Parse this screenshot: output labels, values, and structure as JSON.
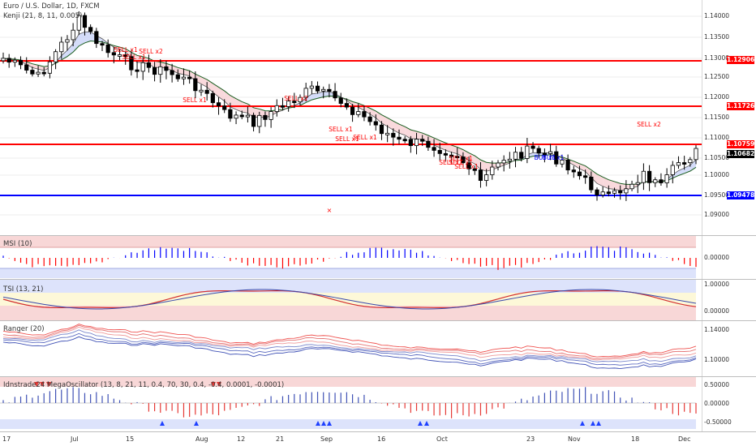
{
  "main": {
    "title": "Euro / U.S. Dollar, 1D, FXCM",
    "indicator": "Kenji (21, 8, 11, 0.005)",
    "ticks": [
      "1.14000",
      "1.13500",
      "1.13000",
      "1.12500",
      "1.12000",
      "1.11500",
      "1.11000",
      "1.10500",
      "1.10000",
      "1.09500",
      "1.09000"
    ],
    "level_tags": [
      {
        "label": "1.12906",
        "color": "#ff0000"
      },
      {
        "label": "1.11726",
        "color": "#ff0000"
      },
      {
        "label": "1.10759",
        "color": "#ff0000"
      },
      {
        "label": "1.10682",
        "color": "#000000"
      },
      {
        "label": "1.09478",
        "color": "#0000ff"
      }
    ],
    "signals": [
      "SELL x1",
      "SELL x1",
      "SELL x2",
      "SELL x1",
      "SELL x2",
      "SELL x1",
      "SELL x1",
      "SELL x1",
      "SELL x1",
      "SELL x1",
      "SELL x1",
      "SELL x1",
      "BUY x1",
      "BUY x1",
      "SELL x2"
    ]
  },
  "panes": [
    {
      "title": "MSI (10)",
      "ticks": [
        "0.00000"
      ]
    },
    {
      "title": "TSI (13, 21)",
      "ticks": [
        "1.00000",
        "0.00000"
      ]
    },
    {
      "title": "Ranger (20)",
      "ticks": [
        "1.14000",
        "1.10000"
      ]
    },
    {
      "title": "Idnstrade24 MegaOscillator (13, 8, 21, 11, 0.4, 70, 30, 0.4, -0.4, 0.0001, -0.0001)",
      "ticks": [
        "0.50000",
        "0.00000",
        "-0.50000"
      ]
    }
  ],
  "x_axis": [
    "17",
    "Jul",
    "15",
    "Aug",
    "12",
    "21",
    "Sep",
    "16",
    "Oct",
    "23",
    "Nov",
    "18",
    "Dec"
  ],
  "colors": {
    "up": "#ffffff",
    "down": "#000000",
    "resistance": "#ff0000",
    "support": "#0000ff",
    "buy": "#0000ff",
    "sell": "#ff0000"
  }
}
